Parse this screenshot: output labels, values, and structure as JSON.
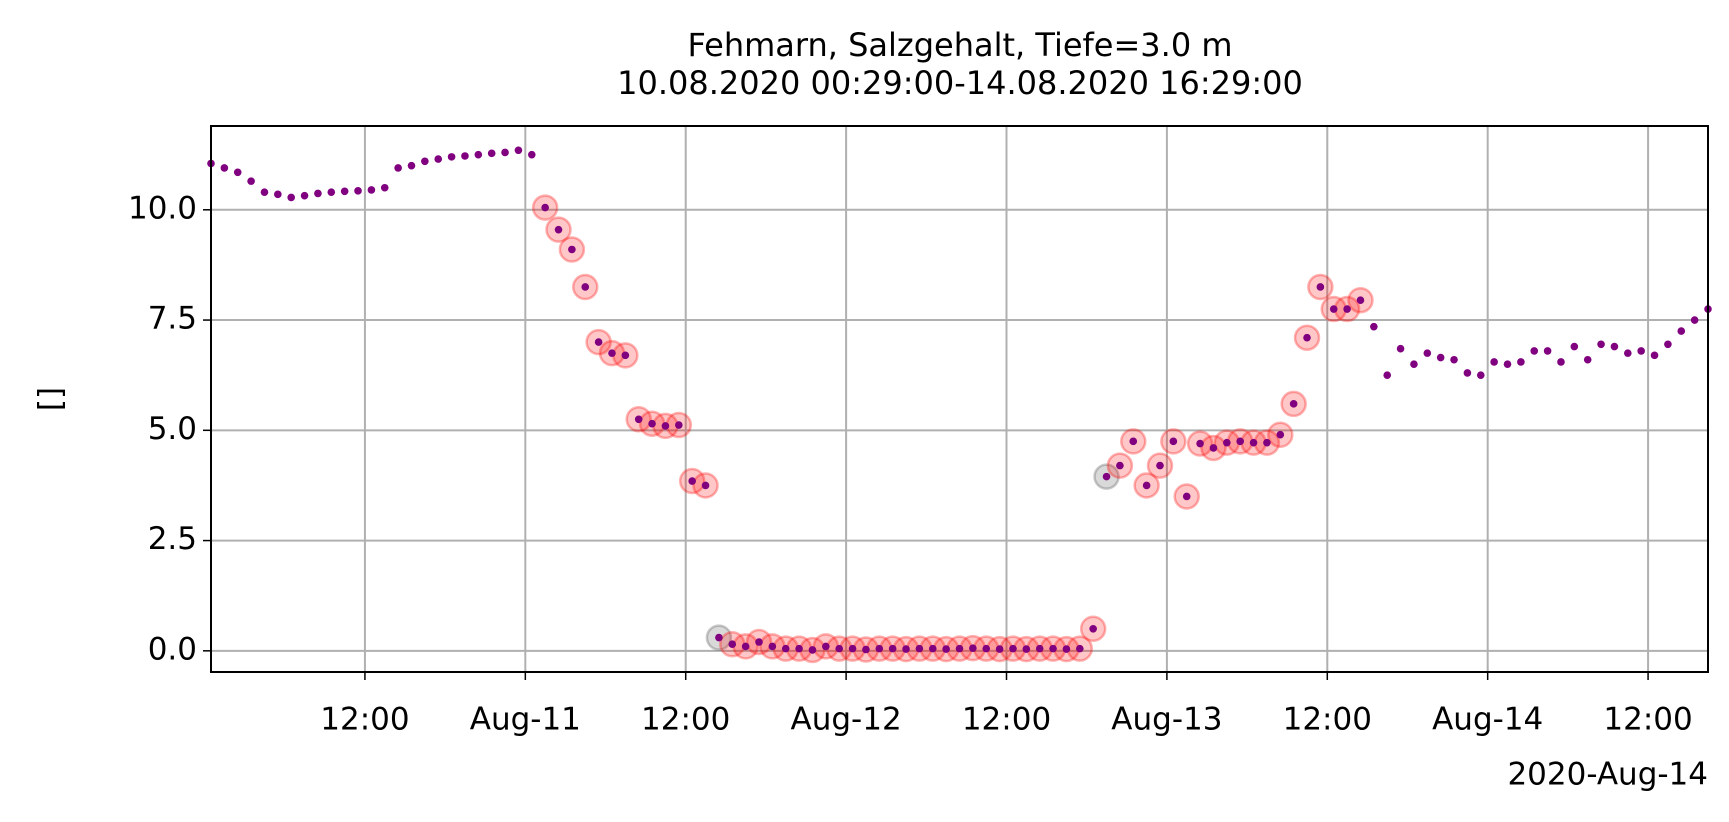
{
  "chart_data": {
    "type": "scatter",
    "title": "Fehmarn, Salzgehalt, Tiefe=3.0 m",
    "subtitle": "10.08.2020 00:29:00-14.08.2020 16:29:00",
    "y_label": "[]",
    "x_offset_label": "2020-Aug-14",
    "x_start": "2020-08-10T00:29",
    "x_step_hours": 1,
    "xlim": [
      "2020-08-10T00:29",
      "2020-08-14T16:29"
    ],
    "xticks": [
      {
        "value": "2020-08-10T12:00",
        "label": "12:00"
      },
      {
        "value": "2020-08-11T00:00",
        "label": "Aug-11"
      },
      {
        "value": "2020-08-11T12:00",
        "label": "12:00"
      },
      {
        "value": "2020-08-12T00:00",
        "label": "Aug-12"
      },
      {
        "value": "2020-08-12T12:00",
        "label": "12:00"
      },
      {
        "value": "2020-08-13T00:00",
        "label": "Aug-13"
      },
      {
        "value": "2020-08-13T12:00",
        "label": "12:00"
      },
      {
        "value": "2020-08-14T00:00",
        "label": "Aug-14"
      },
      {
        "value": "2020-08-14T12:00",
        "label": "12:00"
      }
    ],
    "ylim": [
      -0.48,
      11.9
    ],
    "yticks": [
      {
        "value": 0,
        "label": "0.0"
      },
      {
        "value": 2.5,
        "label": "2.5"
      },
      {
        "value": 5,
        "label": "5.0"
      },
      {
        "value": 7.5,
        "label": "7.5"
      },
      {
        "value": 10,
        "label": "10.0"
      }
    ],
    "grid": true,
    "series": [
      {
        "color": "#800080",
        "marker": "dot",
        "values": [
          11.05,
          10.95,
          10.85,
          10.65,
          10.4,
          10.35,
          10.28,
          10.32,
          10.37,
          10.4,
          10.42,
          10.43,
          10.45,
          10.5,
          10.95,
          11.0,
          11.1,
          11.15,
          11.2,
          11.22,
          11.25,
          11.28,
          11.3,
          11.35,
          11.25,
          10.05,
          9.55,
          9.1,
          8.25,
          7.0,
          6.75,
          6.7,
          5.25,
          5.15,
          5.1,
          5.12,
          3.85,
          3.75,
          0.3,
          0.15,
          0.1,
          0.2,
          0.1,
          0.05,
          0.05,
          0.02,
          0.1,
          0.05,
          0.05,
          0.03,
          0.05,
          0.05,
          0.04,
          0.05,
          0.05,
          0.04,
          0.05,
          0.06,
          0.05,
          0.04,
          0.05,
          0.04,
          0.05,
          0.05,
          0.04,
          0.05,
          0.5,
          3.95,
          4.2,
          4.75,
          3.75,
          4.2,
          4.75,
          3.5,
          4.7,
          4.6,
          4.72,
          4.75,
          4.72,
          4.72,
          4.9,
          5.6,
          7.1,
          8.25,
          7.75,
          7.75,
          7.95,
          7.35,
          6.25,
          6.85,
          6.5,
          6.75,
          6.65,
          6.6,
          6.3,
          6.25,
          6.55,
          6.5,
          6.55,
          6.8,
          6.8,
          6.55,
          6.9,
          6.6,
          6.95,
          6.9,
          6.75,
          6.8,
          6.7,
          6.95,
          7.25,
          7.5,
          7.75
        ]
      },
      {
        "color": "#ff0000",
        "marker": "ring",
        "values": [
          null,
          null,
          null,
          null,
          null,
          null,
          null,
          null,
          null,
          null,
          null,
          null,
          null,
          null,
          null,
          null,
          null,
          null,
          null,
          null,
          null,
          null,
          null,
          null,
          null,
          10.05,
          9.55,
          9.1,
          8.25,
          7.0,
          6.75,
          6.7,
          5.25,
          5.15,
          5.1,
          5.12,
          3.85,
          3.75,
          null,
          0.15,
          0.1,
          0.2,
          0.1,
          0.05,
          0.05,
          0.02,
          0.1,
          0.05,
          0.05,
          0.03,
          0.05,
          0.05,
          0.04,
          0.05,
          0.05,
          0.04,
          0.05,
          0.06,
          0.05,
          0.04,
          0.05,
          0.04,
          0.05,
          0.05,
          0.04,
          0.05,
          0.5,
          null,
          4.2,
          4.75,
          3.75,
          4.2,
          4.75,
          3.5,
          4.7,
          4.6,
          4.72,
          4.75,
          4.72,
          4.72,
          4.9,
          5.6,
          7.1,
          8.25,
          7.75,
          7.75,
          7.95,
          null,
          null,
          null,
          null,
          null,
          null,
          null,
          null,
          null,
          null,
          null,
          null,
          null,
          null,
          null,
          null,
          null,
          null,
          null,
          null,
          null,
          null,
          null,
          null,
          null,
          null
        ]
      },
      {
        "color": "#505050",
        "marker": "ring",
        "values": [
          null,
          null,
          null,
          null,
          null,
          null,
          null,
          null,
          null,
          null,
          null,
          null,
          null,
          null,
          null,
          null,
          null,
          null,
          null,
          null,
          null,
          null,
          null,
          null,
          null,
          null,
          null,
          null,
          null,
          null,
          null,
          null,
          null,
          null,
          null,
          null,
          null,
          null,
          0.3,
          null,
          null,
          null,
          null,
          null,
          null,
          null,
          null,
          null,
          null,
          null,
          null,
          null,
          null,
          null,
          null,
          null,
          null,
          null,
          null,
          null,
          null,
          null,
          null,
          null,
          null,
          null,
          null,
          3.95,
          null,
          null,
          null,
          null,
          null,
          null,
          null,
          null,
          null,
          null,
          null,
          null,
          null,
          null,
          null,
          null,
          null,
          null,
          null,
          null,
          null,
          null,
          null,
          null,
          null,
          null,
          null,
          null,
          null,
          null,
          null,
          null,
          null,
          null,
          null,
          null,
          null,
          null,
          null,
          null,
          null,
          null,
          null,
          null,
          null
        ]
      }
    ]
  }
}
